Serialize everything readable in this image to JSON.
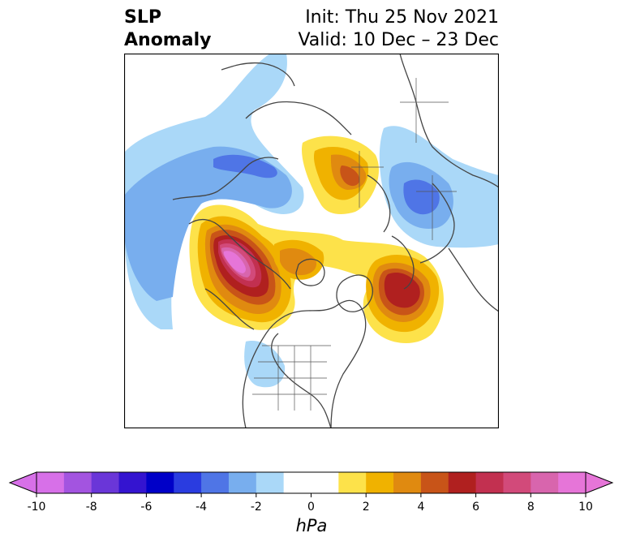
{
  "title": {
    "left_line1": "SLP",
    "left_line2": "Anomaly",
    "init": "Init: Thu 25 Nov 2021",
    "valid": "Valid: 10 Dec – 23 Dec"
  },
  "colorbar": {
    "unit": "hPa",
    "min": -10,
    "max": 10,
    "step": 1,
    "ticks": [
      "-10",
      "-8",
      "-6",
      "-4",
      "-2",
      "0",
      "2",
      "4",
      "6",
      "8",
      "10"
    ],
    "colors": [
      "#d770e8",
      "#a354e0",
      "#6a36d8",
      "#3414d0",
      "#0000c8",
      "#2a3ce0",
      "#4f75e6",
      "#78aeee",
      "#aad8f8",
      "#ffffff",
      "#ffffff",
      "#fde24a",
      "#f0b200",
      "#e08a10",
      "#c85418",
      "#b0201f",
      "#c23050",
      "#d24a7a",
      "#d865ad",
      "#e675d8"
    ]
  },
  "map": {
    "projection": "north-polar-stereographic",
    "variable": "sea level pressure anomaly"
  }
}
